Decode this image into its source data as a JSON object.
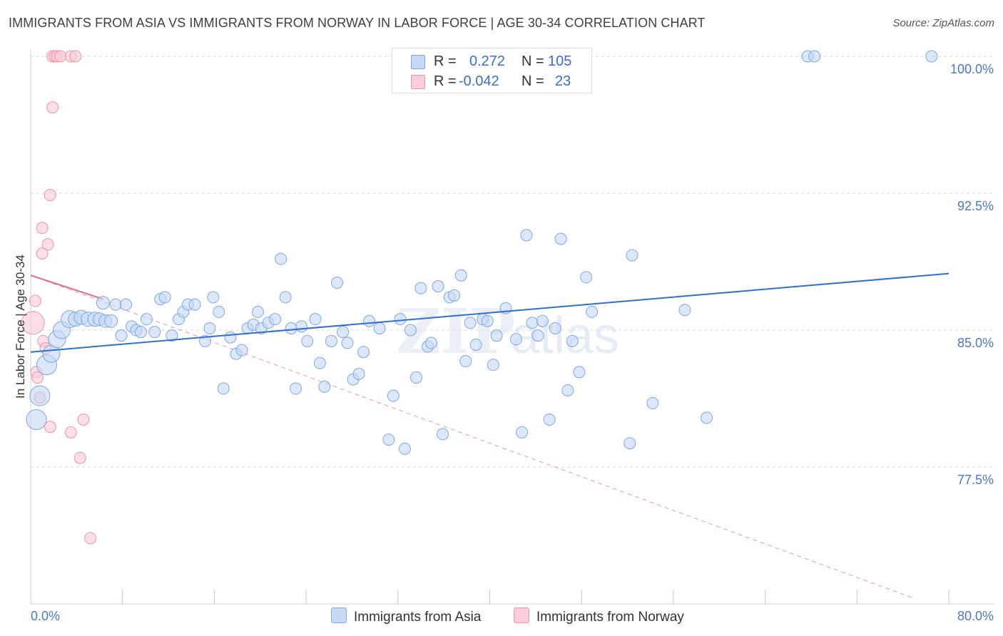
{
  "header": {
    "title": "IMMIGRANTS FROM ASIA VS IMMIGRANTS FROM NORWAY IN LABOR FORCE | AGE 30-34 CORRELATION CHART",
    "source": "Source: ZipAtlas.com"
  },
  "stats": {
    "rows": [
      {
        "r_label": "R =",
        "r_value": "0.272",
        "n_label": "N =",
        "n_value": "105"
      },
      {
        "r_label": "R =",
        "r_value": "-0.042",
        "n_label": "N =",
        "n_value": "23"
      }
    ]
  },
  "legend": {
    "asia": "Immigrants from Asia",
    "norway": "Immigrants from Norway"
  },
  "colors": {
    "asia_fill": "#c5d9f5",
    "asia_stroke": "#7fa7e0",
    "asia_line": "#2f6fd0",
    "norway_fill": "#f9cdd9",
    "norway_stroke": "#ec93ad",
    "norway_line": "#e4698f",
    "tick_text": "#4a78c8"
  },
  "chart_data": {
    "type": "scatter",
    "title": "IMMIGRANTS FROM ASIA VS IMMIGRANTS FROM NORWAY IN LABOR FORCE | AGE 30-34 CORRELATION CHART",
    "xlabel": "",
    "ylabel": "In Labor Force | Age 30-34",
    "xlim": [
      0,
      80
    ],
    "ylim": [
      70,
      100.7
    ],
    "x_tick_labels": [
      "0.0%",
      "80.0%"
    ],
    "y_ticks": [
      77.5,
      85.0,
      92.5,
      100.0
    ],
    "y_tick_labels": [
      "77.5%",
      "85.0%",
      "92.5%",
      "100.0%"
    ],
    "grid": "horizontal dashed",
    "legend_position": "bottom-center",
    "watermark": "ZIPatlas",
    "series": [
      {
        "name": "Immigrants from Asia",
        "color": "#7fa7e0",
        "r": 0.272,
        "n": 105,
        "trend": {
          "x": [
            0,
            80
          ],
          "y": [
            83.8,
            88.1
          ],
          "style": "solid"
        },
        "points": [
          [
            0.5,
            80.1,
            14
          ],
          [
            0.8,
            81.4,
            14
          ],
          [
            1.4,
            83.1,
            14
          ],
          [
            1.8,
            83.7,
            12
          ],
          [
            2.3,
            84.5,
            12
          ],
          [
            2.7,
            85.0,
            12
          ],
          [
            3.4,
            85.6,
            12
          ],
          [
            3.9,
            85.6,
            10
          ],
          [
            4.4,
            85.7,
            10
          ],
          [
            5.0,
            85.6,
            10
          ],
          [
            5.6,
            85.6,
            10
          ],
          [
            6.0,
            85.6,
            9
          ],
          [
            6.5,
            85.5,
            9
          ],
          [
            6.3,
            86.5,
            9
          ],
          [
            7.0,
            85.5,
            9
          ],
          [
            7.4,
            86.4,
            8
          ],
          [
            7.9,
            84.7,
            8
          ],
          [
            8.3,
            86.4,
            8
          ],
          [
            8.8,
            85.2,
            8
          ],
          [
            9.2,
            85.0,
            8
          ],
          [
            9.6,
            84.9,
            8
          ],
          [
            10.1,
            85.6,
            8
          ],
          [
            10.8,
            84.9,
            8
          ],
          [
            11.3,
            86.7,
            8
          ],
          [
            11.7,
            86.8,
            8
          ],
          [
            12.3,
            84.7,
            8
          ],
          [
            12.9,
            85.6,
            8
          ],
          [
            13.3,
            86.0,
            8
          ],
          [
            13.7,
            86.4,
            8
          ],
          [
            14.3,
            86.4,
            8
          ],
          [
            15.2,
            84.4,
            8
          ],
          [
            15.6,
            85.1,
            8
          ],
          [
            15.9,
            86.8,
            8
          ],
          [
            16.4,
            86.0,
            8
          ],
          [
            16.8,
            81.8,
            8
          ],
          [
            17.4,
            84.6,
            8
          ],
          [
            17.9,
            83.7,
            8
          ],
          [
            18.4,
            83.9,
            8
          ],
          [
            18.9,
            85.1,
            8
          ],
          [
            19.4,
            85.3,
            8
          ],
          [
            19.8,
            86.0,
            8
          ],
          [
            20.1,
            85.1,
            8
          ],
          [
            20.7,
            85.4,
            8
          ],
          [
            21.3,
            85.6,
            8
          ],
          [
            21.8,
            88.9,
            8
          ],
          [
            22.2,
            86.8,
            8
          ],
          [
            22.7,
            85.1,
            8
          ],
          [
            23.1,
            81.8,
            8
          ],
          [
            23.6,
            85.2,
            8
          ],
          [
            24.1,
            84.4,
            8
          ],
          [
            24.8,
            85.6,
            8
          ],
          [
            25.2,
            83.2,
            8
          ],
          [
            25.6,
            81.9,
            8
          ],
          [
            26.2,
            84.4,
            8
          ],
          [
            26.7,
            87.6,
            8
          ],
          [
            27.2,
            84.9,
            8
          ],
          [
            27.6,
            84.3,
            8
          ],
          [
            28.1,
            82.3,
            8
          ],
          [
            28.6,
            82.6,
            8
          ],
          [
            29.0,
            83.8,
            8
          ],
          [
            29.5,
            85.5,
            8
          ],
          [
            30.4,
            85.1,
            8
          ],
          [
            31.2,
            79.0,
            8
          ],
          [
            31.6,
            81.4,
            8
          ],
          [
            32.2,
            85.6,
            8
          ],
          [
            32.6,
            78.5,
            8
          ],
          [
            33.1,
            85.0,
            8
          ],
          [
            33.6,
            82.4,
            8
          ],
          [
            34.0,
            87.3,
            8
          ],
          [
            34.6,
            84.1,
            8
          ],
          [
            34.9,
            84.3,
            8
          ],
          [
            35.5,
            87.4,
            8
          ],
          [
            35.9,
            79.3,
            8
          ],
          [
            36.5,
            86.8,
            8
          ],
          [
            36.9,
            86.9,
            8
          ],
          [
            37.5,
            88.0,
            8
          ],
          [
            37.9,
            83.3,
            8
          ],
          [
            38.3,
            85.4,
            8
          ],
          [
            38.8,
            84.2,
            8
          ],
          [
            39.4,
            85.6,
            8
          ],
          [
            39.8,
            85.5,
            8
          ],
          [
            40.3,
            83.1,
            8
          ],
          [
            40.6,
            84.7,
            8
          ],
          [
            41.4,
            86.2,
            8
          ],
          [
            42.3,
            84.5,
            8
          ],
          [
            42.8,
            79.4,
            8
          ],
          [
            43.2,
            90.2,
            8
          ],
          [
            43.7,
            85.4,
            8
          ],
          [
            44.2,
            84.7,
            8
          ],
          [
            44.6,
            85.5,
            8
          ],
          [
            45.2,
            80.1,
            8
          ],
          [
            45.7,
            85.1,
            8
          ],
          [
            46.2,
            90.0,
            8
          ],
          [
            46.8,
            81.7,
            8
          ],
          [
            47.2,
            84.4,
            8
          ],
          [
            47.8,
            82.7,
            8
          ],
          [
            48.4,
            87.9,
            8
          ],
          [
            48.9,
            86.0,
            8
          ],
          [
            52.2,
            78.8,
            8
          ],
          [
            52.4,
            89.1,
            8
          ],
          [
            54.2,
            81.0,
            8
          ],
          [
            57.0,
            86.1,
            8
          ],
          [
            58.9,
            80.2,
            8
          ],
          [
            67.7,
            100.0,
            8
          ],
          [
            68.3,
            100.0,
            8
          ],
          [
            78.5,
            100.0,
            8
          ]
        ]
      },
      {
        "name": "Immigrants from Norway",
        "color": "#ec93ad",
        "r": -0.042,
        "n": 23,
        "trend": {
          "x": [
            0,
            6.3
          ],
          "y": [
            88.0,
            86.7
          ],
          "style": "solid",
          "extended_to": {
            "x": 77.0,
            "y": 70.3,
            "style": "dashed"
          }
        },
        "points": [
          [
            0.2,
            85.4,
            16
          ],
          [
            0.4,
            86.6,
            8
          ],
          [
            0.5,
            82.7,
            8
          ],
          [
            0.6,
            82.4,
            8
          ],
          [
            0.8,
            81.3,
            8
          ],
          [
            1.1,
            84.4,
            8
          ],
          [
            1.3,
            84.0,
            8
          ],
          [
            1.0,
            89.2,
            8
          ],
          [
            1.0,
            90.6,
            8
          ],
          [
            1.5,
            89.7,
            8
          ],
          [
            1.7,
            92.4,
            8
          ],
          [
            1.9,
            97.2,
            8
          ],
          [
            1.9,
            100.0,
            8
          ],
          [
            2.1,
            100.0,
            8
          ],
          [
            2.3,
            100.0,
            8
          ],
          [
            2.6,
            100.0,
            8
          ],
          [
            3.5,
            100.0,
            8
          ],
          [
            3.9,
            100.0,
            8
          ],
          [
            1.7,
            79.7,
            8
          ],
          [
            3.5,
            79.4,
            8
          ],
          [
            4.3,
            78.0,
            8
          ],
          [
            4.6,
            80.1,
            8
          ],
          [
            5.2,
            73.6,
            8
          ]
        ]
      }
    ]
  }
}
